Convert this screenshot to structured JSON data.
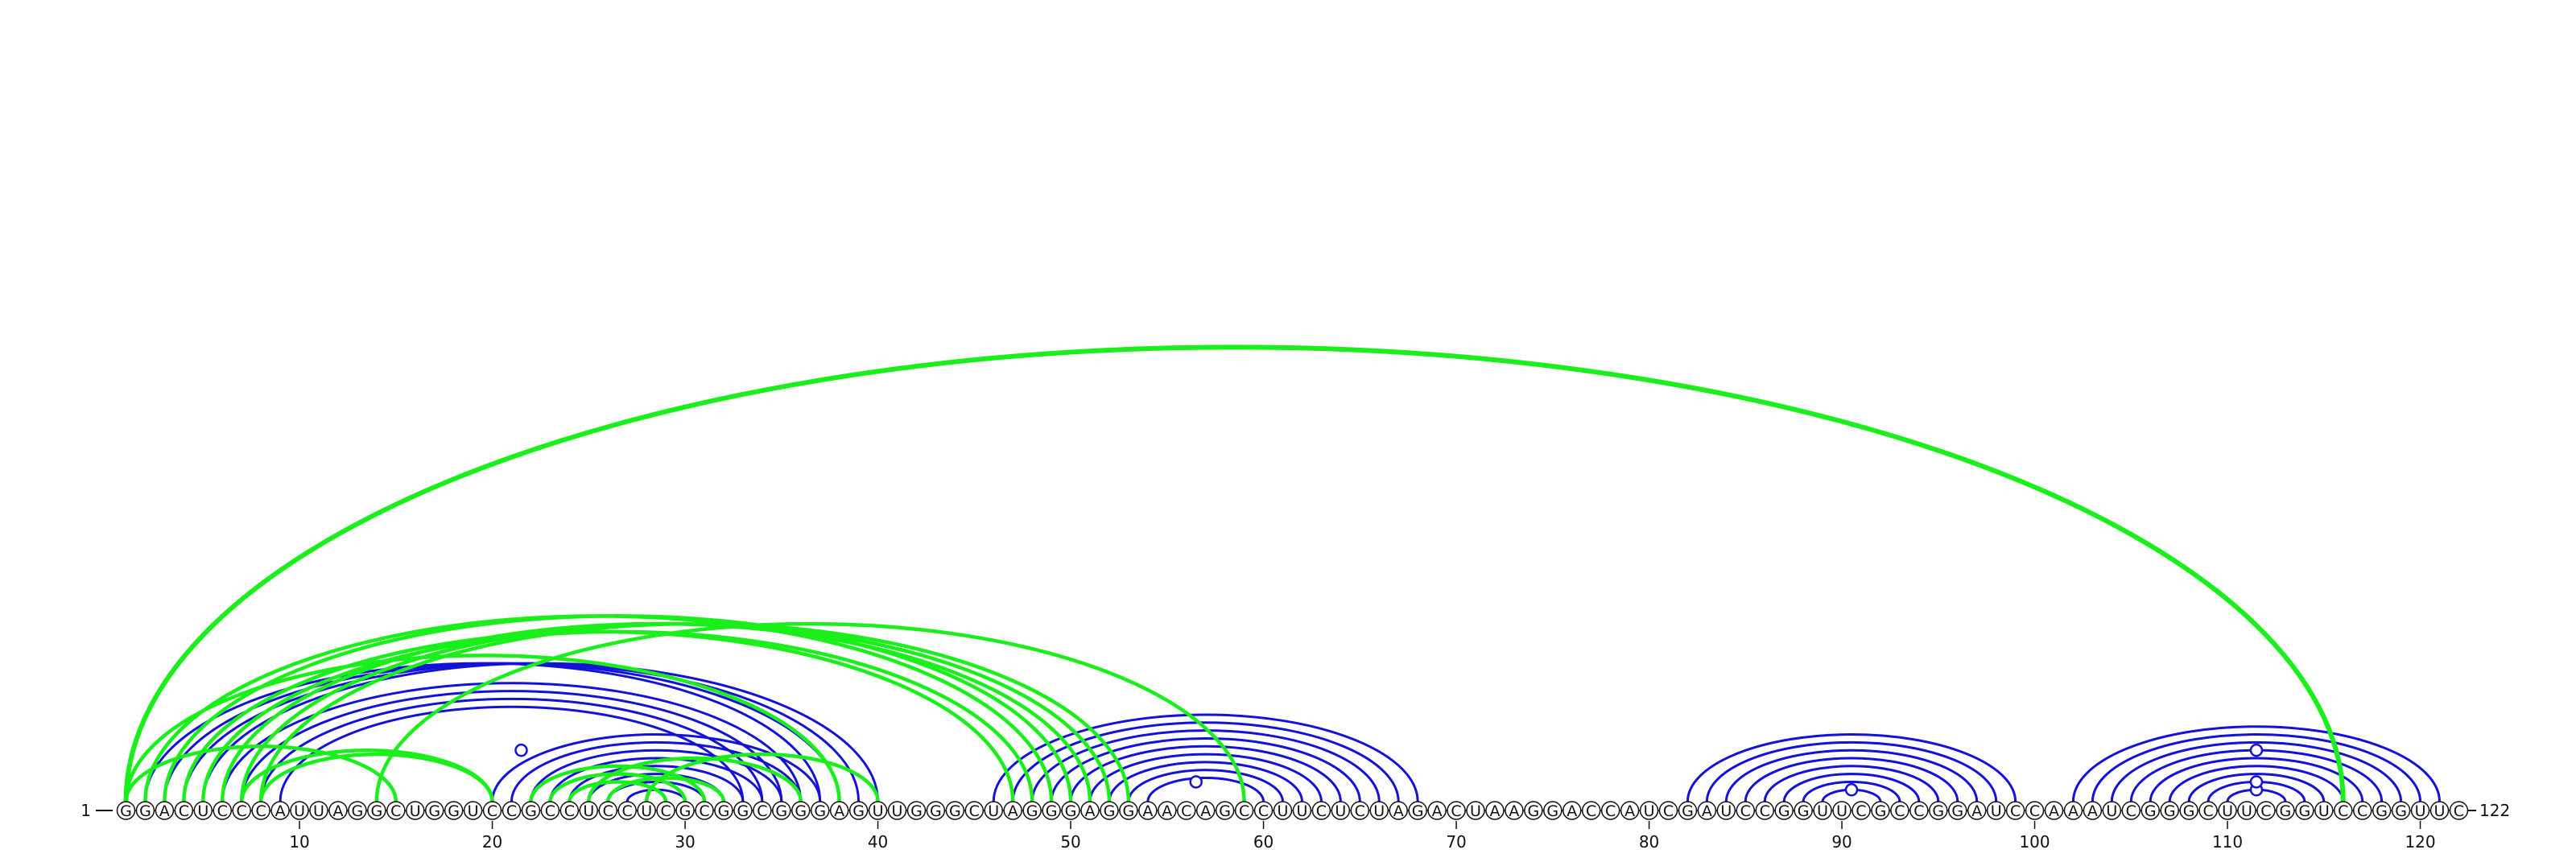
{
  "sequence": {
    "start_label": "1",
    "end_label": "122",
    "bases": "GGACUCCCAUUAGGCUGGUCCGCCUCCUCGCGGCGGGAGUUGGGCUAGGGAGGAACAGCCUUCUCUAGACUAAGGACCAUCGAUCCGGUUCGCCGGAUCCAAAUCGGGCUUCGGUCCGGUUC"
  },
  "axis": {
    "ticks": [
      10,
      20,
      30,
      40,
      50,
      60,
      70,
      80,
      90,
      100,
      110,
      120
    ]
  },
  "colors": {
    "blue_arc": "#1212d8",
    "green_arc": "#1bef1b",
    "nucleotide_fill": "#ffffff",
    "nucleotide_stroke": "#111111",
    "text": "#111111"
  },
  "arcs": {
    "blue": [
      [
        2,
        37
      ],
      [
        3,
        38
      ],
      [
        4,
        39
      ],
      [
        5,
        40
      ],
      [
        6,
        36
      ],
      [
        7,
        35
      ],
      [
        8,
        34
      ],
      [
        9,
        33
      ],
      [
        20,
        37
      ],
      [
        21,
        36
      ],
      [
        22,
        35
      ],
      [
        23,
        34
      ],
      [
        24,
        33
      ],
      [
        25,
        32
      ],
      [
        26,
        31
      ],
      [
        27,
        30
      ],
      [
        46,
        68
      ],
      [
        47,
        67
      ],
      [
        48,
        66
      ],
      [
        49,
        65
      ],
      [
        50,
        64
      ],
      [
        51,
        63
      ],
      [
        52,
        62
      ],
      [
        53,
        61
      ],
      [
        54,
        60
      ],
      [
        82,
        99
      ],
      [
        83,
        98
      ],
      [
        84,
        97
      ],
      [
        85,
        96
      ],
      [
        86,
        95
      ],
      [
        87,
        94
      ],
      [
        88,
        93
      ],
      [
        89,
        92
      ],
      [
        102,
        121
      ],
      [
        103,
        120
      ],
      [
        104,
        119
      ],
      [
        105,
        118
      ],
      [
        106,
        117
      ],
      [
        107,
        116
      ],
      [
        108,
        115
      ],
      [
        109,
        114
      ],
      [
        110,
        113
      ]
    ],
    "green": [
      [
        1,
        116
      ],
      [
        1,
        15
      ],
      [
        1,
        38
      ],
      [
        2,
        49
      ],
      [
        3,
        50
      ],
      [
        4,
        47
      ],
      [
        5,
        48
      ],
      [
        6,
        51
      ],
      [
        7,
        52
      ],
      [
        8,
        53
      ],
      [
        7,
        20
      ],
      [
        8,
        20
      ],
      [
        14,
        59
      ],
      [
        22,
        31
      ],
      [
        23,
        30
      ],
      [
        24,
        29
      ],
      [
        26,
        32
      ],
      [
        25,
        36
      ],
      [
        28,
        40
      ]
    ]
  },
  "pair_markers": [
    {
      "i": 15,
      "j": 28
    },
    {
      "i": 54,
      "j": 59
    },
    {
      "i": 89,
      "j": 92
    },
    {
      "i": 110,
      "j": 113
    },
    {
      "i": 109,
      "j": 114
    },
    {
      "i": 105,
      "j": 118
    }
  ]
}
